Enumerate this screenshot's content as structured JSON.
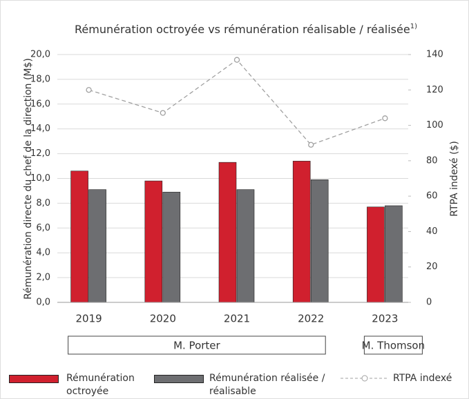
{
  "chart_data": {
    "type": "bar",
    "title": "Rémunération octroyée vs rémunération réalisable / réalisée",
    "title_note": "1)",
    "categories": [
      "2019",
      "2020",
      "2021",
      "2022",
      "2023"
    ],
    "series": [
      {
        "name": "Rémunération octroyée",
        "color": "#d0202e",
        "values": [
          10.6,
          9.8,
          11.3,
          11.4,
          7.7
        ]
      },
      {
        "name": "Rémunération réalisée / réalisable",
        "color": "#6d6e71",
        "values": [
          9.1,
          8.9,
          9.1,
          9.9,
          7.8
        ]
      },
      {
        "name": "RTPA indexé",
        "color": "#a0a0a0",
        "type": "line",
        "axis": "y2",
        "values": [
          120,
          107,
          137,
          89,
          104
        ]
      }
    ],
    "ylabel": "Rémunération directe du chef de la direction (M$)",
    "y2label": "RTPA indexé ($)",
    "ylim": [
      0,
      20
    ],
    "yticks": [
      {
        "value": 0,
        "label": "0,0"
      },
      {
        "value": 2,
        "label": "2,0"
      },
      {
        "value": 4,
        "label": "4,0"
      },
      {
        "value": 6,
        "label": "6,0"
      },
      {
        "value": 8,
        "label": "8,0"
      },
      {
        "value": 10,
        "label": "10,0"
      },
      {
        "value": 12,
        "label": "12,0"
      },
      {
        "value": 14,
        "label": "14,0"
      },
      {
        "value": 16,
        "label": "16,0"
      },
      {
        "value": 18,
        "label": "18,0"
      },
      {
        "value": 20,
        "label": "20,0"
      }
    ],
    "y2lim": [
      0,
      140
    ],
    "y2ticks": [
      0,
      20,
      40,
      60,
      80,
      100,
      120,
      140
    ],
    "grid": true,
    "groups": [
      {
        "label": "M. Porter",
        "from": "2019",
        "to": "2022"
      },
      {
        "label": "M. Thomson",
        "from": "2023",
        "to": "2023"
      }
    ]
  }
}
